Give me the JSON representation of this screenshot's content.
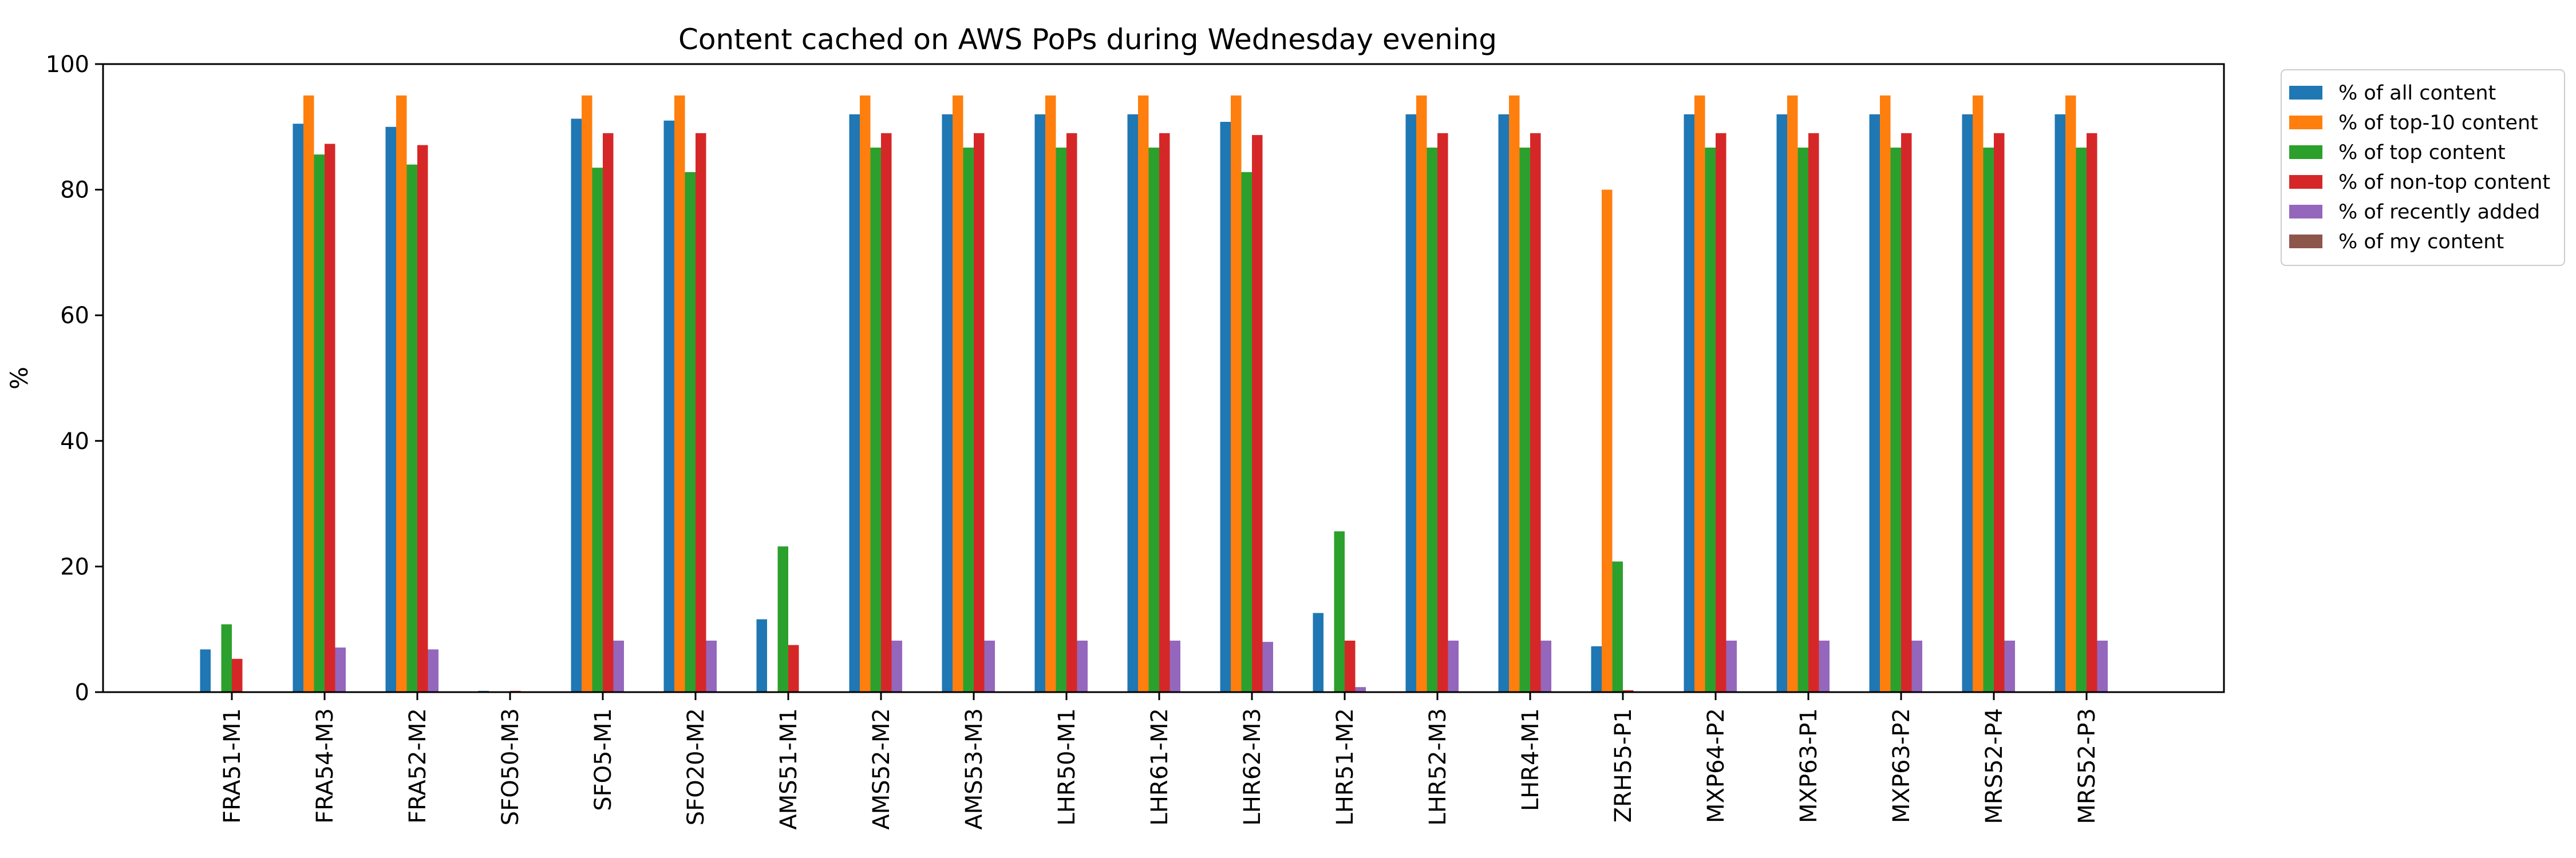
{
  "chart_data": {
    "type": "bar",
    "title": "Content cached on AWS PoPs during Wednesday evening",
    "xlabel": "",
    "ylabel": "%",
    "ylim": [
      0,
      100
    ],
    "yticks": [
      "0",
      "20",
      "40",
      "60",
      "80",
      "100"
    ],
    "grid": false,
    "legend_position": "outside-top-right",
    "categories": [
      "FRA51-M1",
      "FRA54-M3",
      "FRA52-M2",
      "SFO50-M3",
      "SFO5-M1",
      "SFO20-M2",
      "AMS51-M1",
      "AMS52-M2",
      "AMS53-M3",
      "LHR50-M1",
      "LHR61-M2",
      "LHR62-M3",
      "LHR51-M2",
      "LHR52-M3",
      "LHR4-M1",
      "ZRH55-P1",
      "MXP64-P2",
      "MXP63-P1",
      "MXP63-P2",
      "MRS52-P4",
      "MRS52-P3"
    ],
    "series": [
      {
        "name": "% of all content",
        "color": "#1f77b4",
        "values": [
          6.8,
          90.5,
          90.0,
          0.2,
          91.3,
          91.0,
          11.6,
          92.0,
          92.0,
          92.0,
          92.0,
          90.8,
          12.6,
          92.0,
          92.0,
          7.3,
          92.0,
          92.0,
          92.0,
          92.0,
          92.0
        ]
      },
      {
        "name": "% of top-10 content",
        "color": "#ff7f0e",
        "values": [
          0,
          95,
          95,
          0,
          95,
          95,
          0,
          95,
          95,
          95,
          95,
          95,
          0,
          95,
          95,
          80,
          95,
          95,
          95,
          95,
          95
        ]
      },
      {
        "name": "% of top content",
        "color": "#2ca02c",
        "values": [
          10.8,
          85.6,
          84.0,
          0,
          83.5,
          82.8,
          23.2,
          86.7,
          86.7,
          86.7,
          86.7,
          82.8,
          25.6,
          86.7,
          86.7,
          20.8,
          86.7,
          86.7,
          86.7,
          86.7,
          86.7
        ]
      },
      {
        "name": "% of non-top content",
        "color": "#d62728",
        "values": [
          5.3,
          87.3,
          87.1,
          0.2,
          89.0,
          89.0,
          7.5,
          89.0,
          89.0,
          89.0,
          89.0,
          88.7,
          8.2,
          89.0,
          89.0,
          0.3,
          89.0,
          89.0,
          89.0,
          89.0,
          89.0
        ]
      },
      {
        "name": "% of recently added",
        "color": "#9467bd",
        "values": [
          0,
          7.1,
          6.8,
          0,
          8.2,
          8.2,
          0,
          8.2,
          8.2,
          8.2,
          8.2,
          8.0,
          0.8,
          8.2,
          8.2,
          0,
          8.2,
          8.2,
          8.2,
          8.2,
          8.2
        ]
      },
      {
        "name": "% of my content",
        "color": "#8c564b",
        "values": [
          0,
          0,
          0,
          0,
          0,
          0,
          0,
          0,
          0,
          0,
          0,
          0,
          0,
          0,
          0,
          0,
          0,
          0,
          0,
          0,
          0
        ]
      }
    ]
  }
}
